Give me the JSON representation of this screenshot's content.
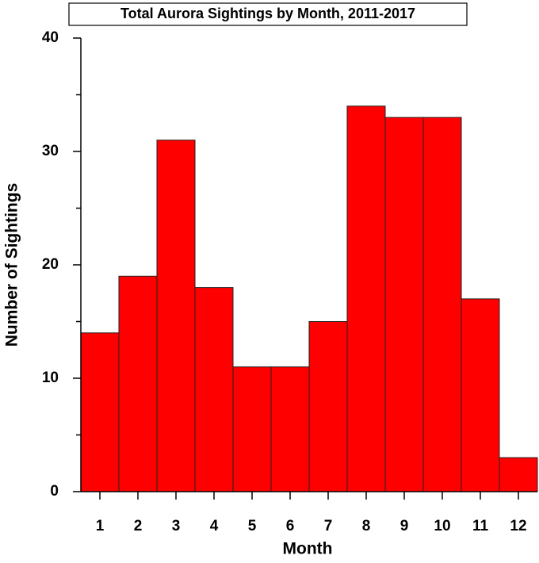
{
  "chart_data": {
    "type": "bar",
    "title": "Total Aurora Sightings by Month, 2011-2017",
    "xlabel": "Month",
    "ylabel": "Number of Sightings",
    "categories": [
      "1",
      "2",
      "3",
      "4",
      "5",
      "6",
      "7",
      "8",
      "9",
      "10",
      "11",
      "12"
    ],
    "values": [
      14,
      19,
      31,
      18,
      11,
      11,
      15,
      34,
      33,
      33,
      17,
      3
    ],
    "color": "#ff0000",
    "ylim": [
      0,
      40
    ],
    "yticks": [
      0,
      10,
      20,
      30,
      40
    ],
    "yminorticks": [
      5,
      15,
      25,
      35
    ],
    "grid": false
  }
}
